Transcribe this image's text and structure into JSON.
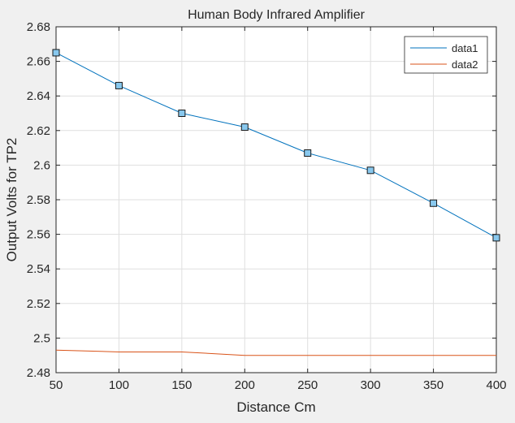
{
  "chart_data": {
    "type": "line",
    "title": "Human Body Infrared Amplifier",
    "xlabel": "Distance Cm",
    "ylabel": "Output Volts for TP2",
    "xlim": [
      50,
      400
    ],
    "ylim": [
      2.48,
      2.68
    ],
    "x_ticks": [
      50,
      100,
      150,
      200,
      250,
      300,
      350,
      400
    ],
    "x_tick_labels": [
      "50",
      "100",
      "150",
      "200",
      "250",
      "300",
      "350",
      "400"
    ],
    "y_ticks": [
      2.48,
      2.5,
      2.52,
      2.54,
      2.56,
      2.58,
      2.6,
      2.62,
      2.64,
      2.66,
      2.68
    ],
    "y_tick_labels": [
      "2.48",
      "2.5",
      "2.52",
      "2.54",
      "2.56",
      "2.58",
      "2.6",
      "2.62",
      "2.64",
      "2.66",
      "2.68"
    ],
    "grid": true,
    "legend_position": "top-right",
    "series": [
      {
        "name": "data1",
        "color": "#0072BD",
        "marker": "square",
        "marker_fill": "#88C8EE",
        "x": [
          50,
          100,
          150,
          200,
          250,
          300,
          350,
          400
        ],
        "y": [
          2.665,
          2.646,
          2.63,
          2.622,
          2.607,
          2.597,
          2.578,
          2.558
        ]
      },
      {
        "name": "data2",
        "color": "#D95319",
        "marker": "none",
        "x": [
          50,
          100,
          150,
          200,
          250,
          300,
          350,
          400
        ],
        "y": [
          2.493,
          2.492,
          2.492,
          2.49,
          2.49,
          2.49,
          2.49,
          2.49
        ]
      }
    ]
  }
}
